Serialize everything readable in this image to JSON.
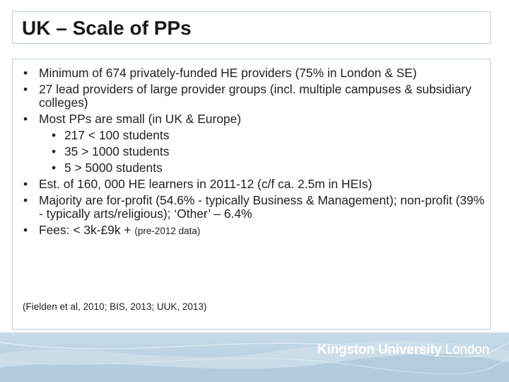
{
  "slide": {
    "title": "UK – Scale of PPs",
    "bullets": [
      {
        "level": 1,
        "text": "Minimum of 674 privately-funded HE providers (75% in London & SE)"
      },
      {
        "level": 1,
        "text": "27 lead providers of large provider groups (incl. multiple campuses & subsidiary colleges)"
      },
      {
        "level": 1,
        "text": "Most PPs are small (in UK & Europe)"
      },
      {
        "level": 2,
        "text": "217 < 100 students"
      },
      {
        "level": 2,
        "text": "35 > 1000 students"
      },
      {
        "level": 2,
        "text": "5 > 5000 students"
      },
      {
        "level": 1,
        "text": "Est. of 160, 000 HE learners in 2011-12 (c/f ca. 2.5m in HEIs)"
      },
      {
        "level": 1,
        "text": "Majority are for-profit (54.6% - typically Business & Management); non-profit (39% - typically arts/religious); ‘Other’ – 6.4%"
      },
      {
        "level": 1,
        "text": "Fees: < 3k-£9k + ",
        "small": "(pre-2012 data)"
      }
    ],
    "bullet_char": "•",
    "citation": "(Fielden et al, 2010; BIS, 2013; UUK, 2013)"
  },
  "footer": {
    "logo_main": "Kingston University",
    "logo_city": "London",
    "background_color": "#b9cfe0"
  }
}
